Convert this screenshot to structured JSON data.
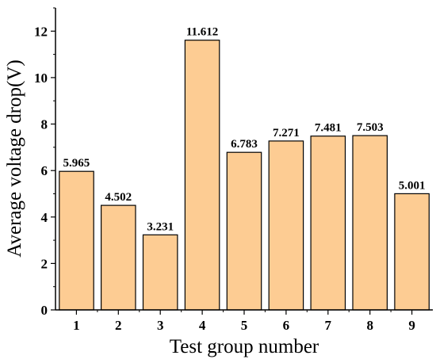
{
  "chart_data": {
    "type": "bar",
    "categories": [
      "1",
      "2",
      "3",
      "4",
      "5",
      "6",
      "7",
      "8",
      "9"
    ],
    "values": [
      5.965,
      4.502,
      3.231,
      11.612,
      6.783,
      7.271,
      7.481,
      7.503,
      5.001
    ],
    "data_labels": [
      "5.965",
      "4.502",
      "3.231",
      "11.612",
      "6.783",
      "7.271",
      "7.481",
      "7.503",
      "5.001"
    ],
    "xlabel": "Test group number",
    "ylabel": "Average voltage drop(V)",
    "ylim": [
      0,
      13
    ],
    "yticks": [
      0,
      2,
      4,
      6,
      8,
      10,
      12
    ],
    "grid": false,
    "colors": {
      "bar_fill": "#fdcc93",
      "bar_stroke": "#000000"
    }
  }
}
